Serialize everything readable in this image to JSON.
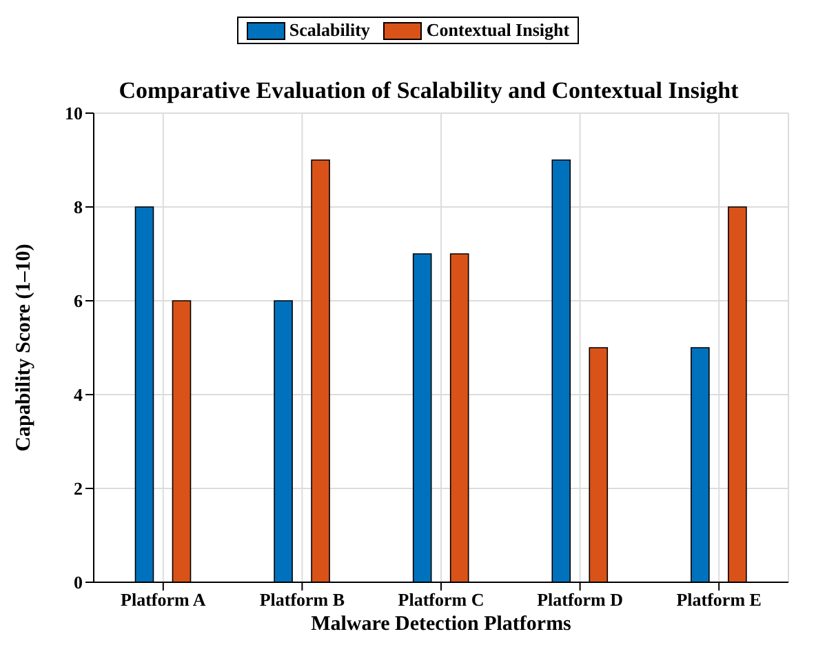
{
  "chart_data": {
    "type": "bar",
    "title": "Comparative Evaluation of Scalability and Contextual Insight",
    "xlabel": "Malware Detection Platforms",
    "ylabel": "Capability Score (1–10)",
    "categories": [
      "Platform A",
      "Platform B",
      "Platform C",
      "Platform D",
      "Platform E"
    ],
    "series": [
      {
        "name": "Scalability",
        "color": "#0072bd",
        "values": [
          8,
          6,
          7,
          9,
          5
        ]
      },
      {
        "name": "Contextual Insight",
        "color": "#d95319",
        "values": [
          6,
          9,
          7,
          5,
          8
        ]
      }
    ],
    "ylim": [
      0,
      10
    ],
    "yticks": [
      0,
      2,
      4,
      6,
      8,
      10
    ],
    "grid": true,
    "legend": "top"
  }
}
